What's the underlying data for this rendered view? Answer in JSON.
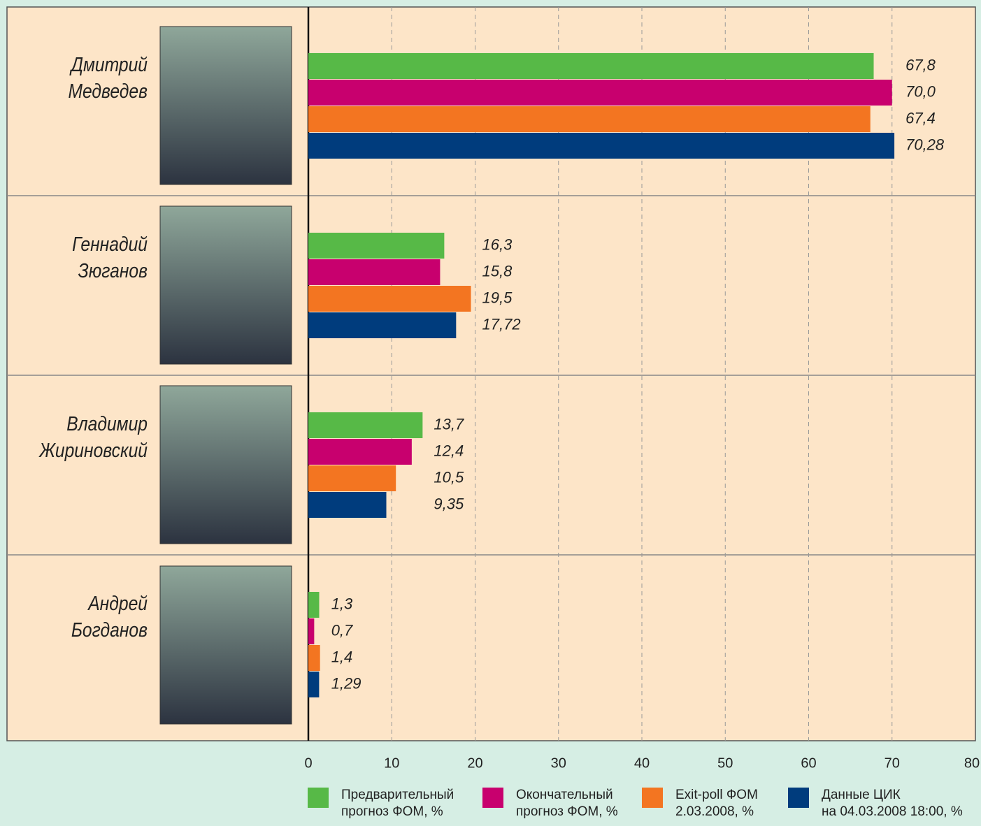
{
  "chart_data": {
    "type": "bar",
    "orientation": "horizontal",
    "categories": [
      "Дмитрий\nМедведев",
      "Геннадий\nЗюганов",
      "Владимир\nЖириновский",
      "Андрей\nБогданов"
    ],
    "series": [
      {
        "name": "Предварительный\nпрогноз ФОМ, %",
        "color": "#57b947",
        "values": [
          67.8,
          16.3,
          13.7,
          1.3
        ],
        "value_labels": [
          "67,8",
          "16,3",
          "13,7",
          "1,3"
        ]
      },
      {
        "name": "Окончательный\nпрогноз ФОМ, %",
        "color": "#c8006e",
        "values": [
          70.0,
          15.8,
          12.4,
          0.7
        ],
        "value_labels": [
          "70,0",
          "15,8",
          "12,4",
          "0,7"
        ]
      },
      {
        "name": "Exit-poll ФОМ\n2.03.2008, %",
        "color": "#f37521",
        "values": [
          67.4,
          19.5,
          10.5,
          1.4
        ],
        "value_labels": [
          "67,4",
          "19,5",
          "10,5",
          "1,4"
        ]
      },
      {
        "name": "Данные ЦИК\nна 04.03.2008 18:00, %",
        "color": "#003c7d",
        "values": [
          70.28,
          17.72,
          9.35,
          1.29
        ],
        "value_labels": [
          "70,28",
          "17,72",
          "9,35",
          "1,29"
        ]
      }
    ],
    "xlim": [
      0,
      80
    ],
    "xticks": [
      0,
      10,
      20,
      30,
      40,
      50,
      60,
      70,
      80
    ],
    "grid": true
  }
}
